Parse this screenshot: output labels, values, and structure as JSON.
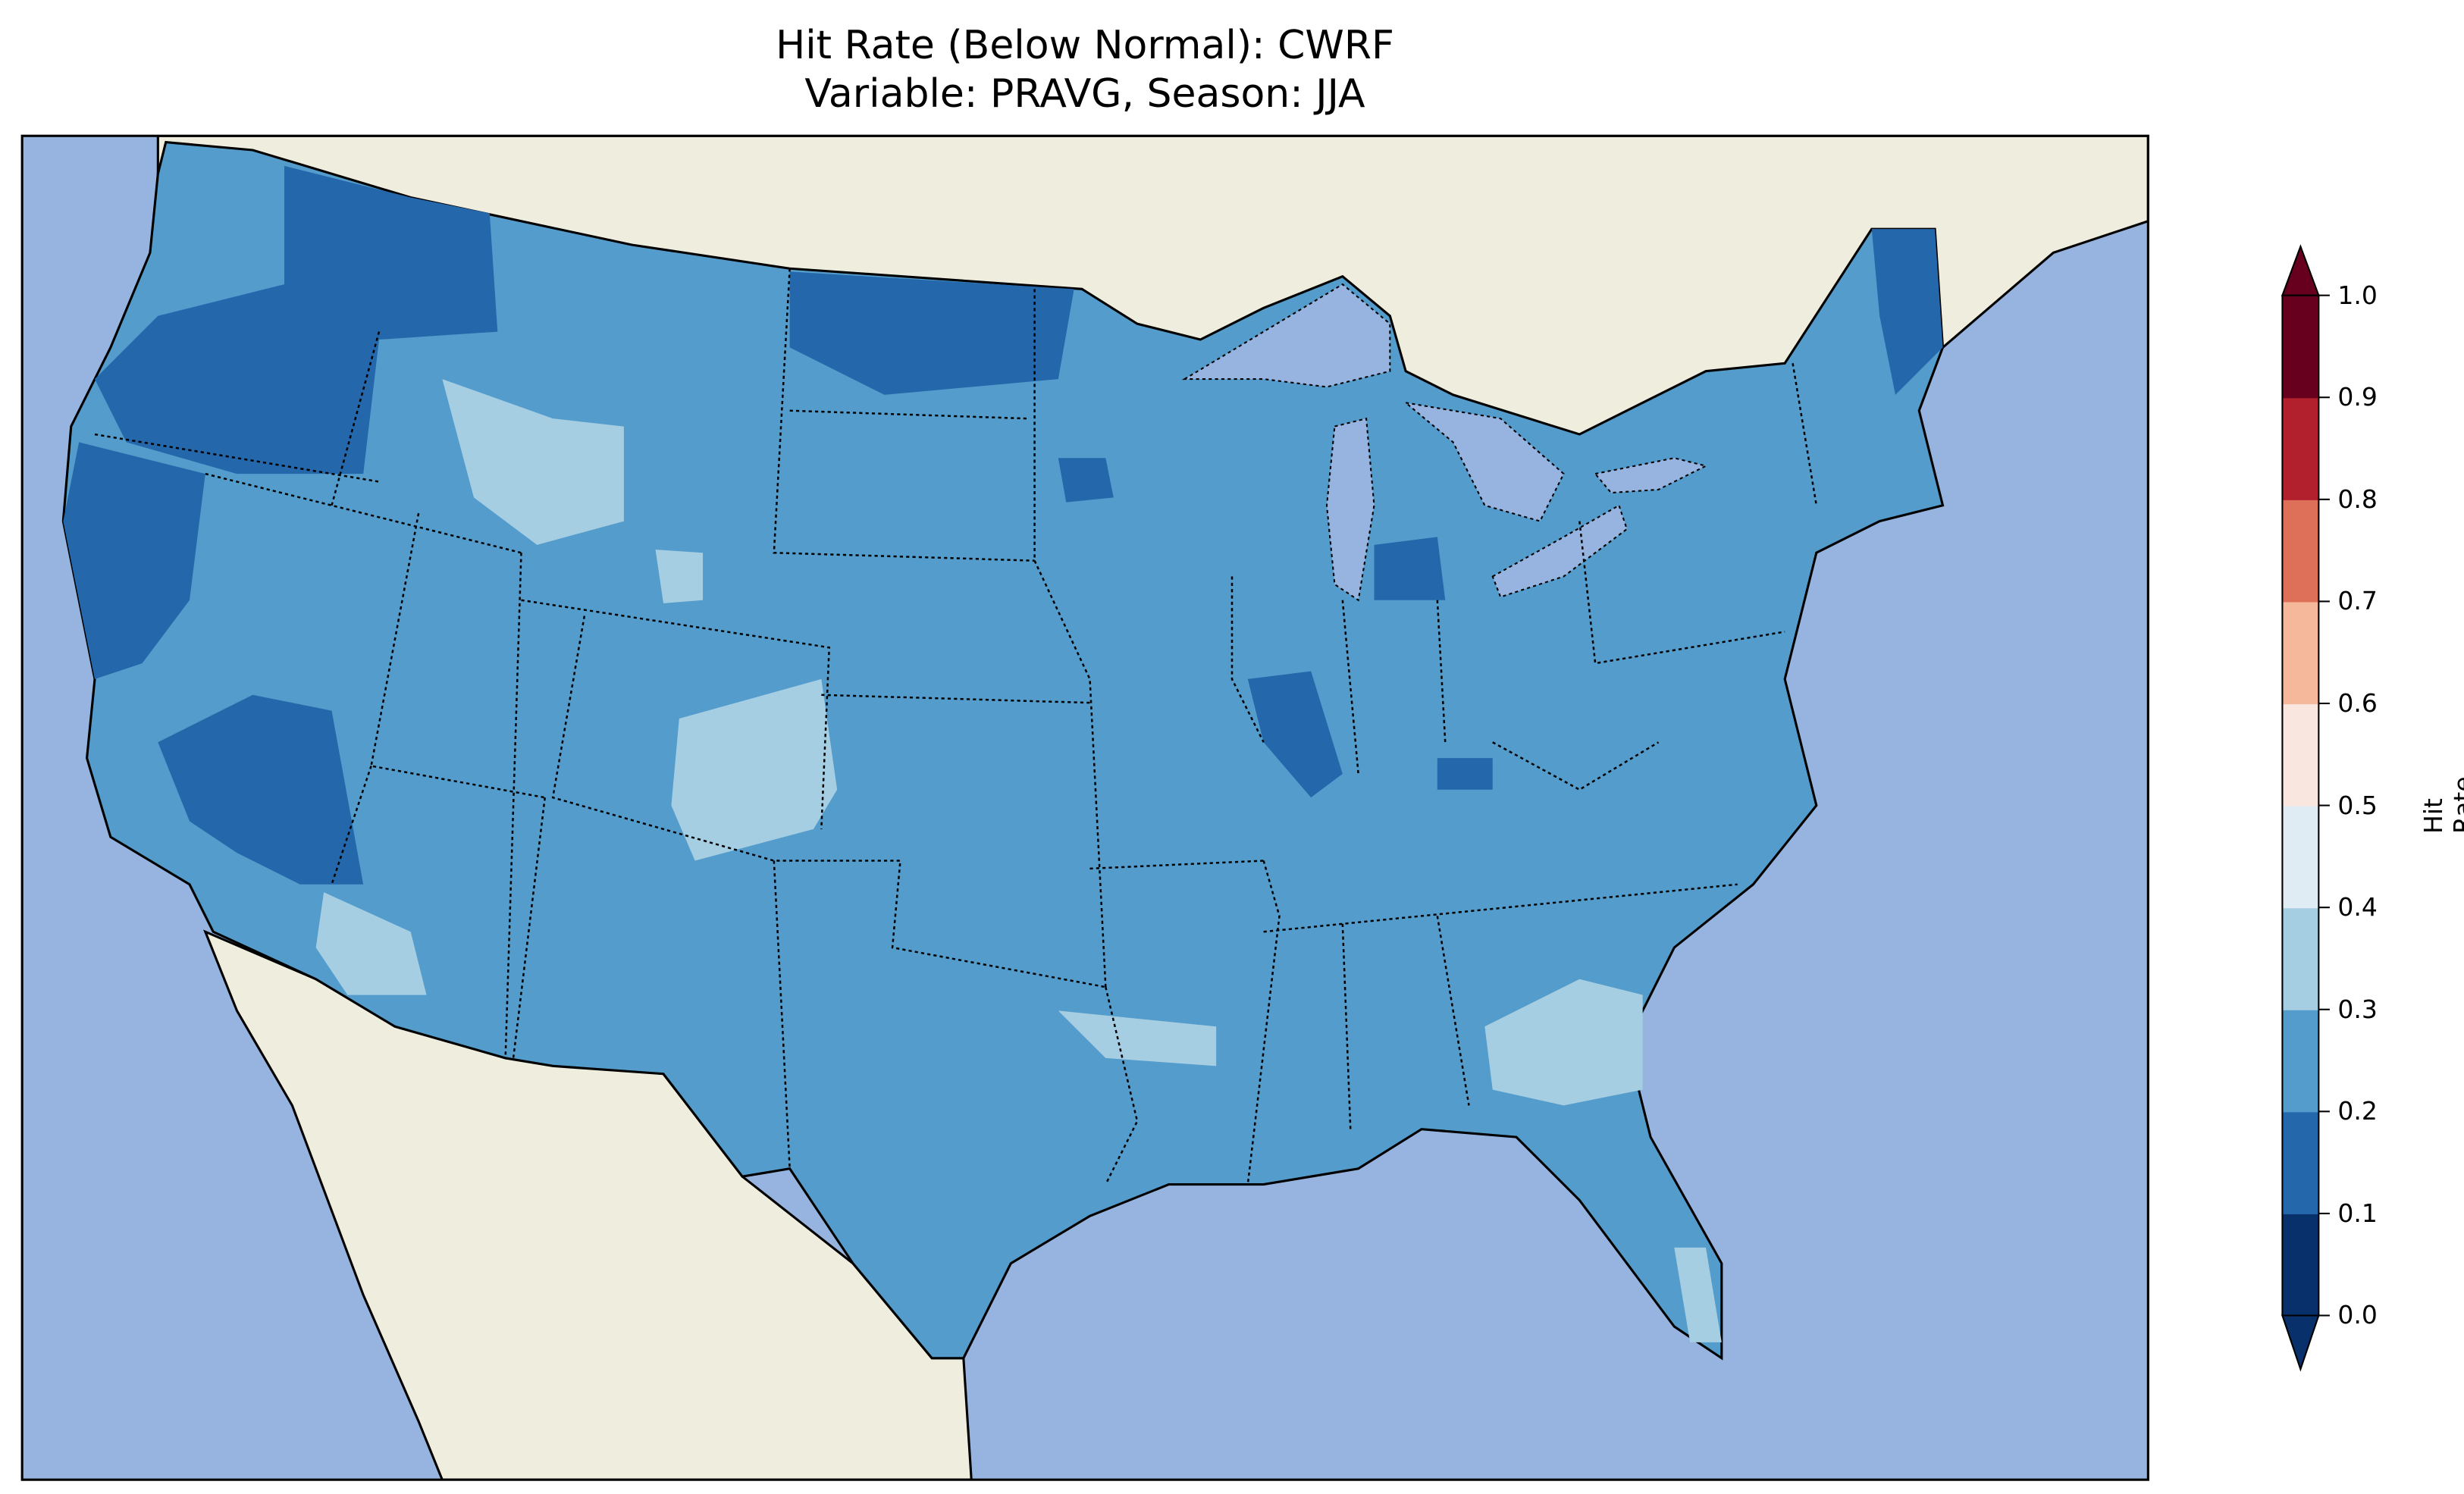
{
  "title": {
    "line1": "Hit Rate (Below Normal): CWRF",
    "line2": "Variable: PRAVG, Season: JJA"
  },
  "chart_data": {
    "type": "heatmap",
    "title": "Hit Rate (Below Normal): CWRF / Variable: PRAVG, Season: JJA",
    "region": "Contiguous United States",
    "colorbar": {
      "label": "Hit Rate",
      "ticks": [
        "0.0",
        "0.1",
        "0.2",
        "0.3",
        "0.4",
        "0.5",
        "0.6",
        "0.7",
        "0.8",
        "0.9",
        "1.0"
      ],
      "range": [
        0,
        1
      ],
      "extend": "both",
      "colors": [
        "#08306b",
        "#2467ab",
        "#539ccb",
        "#a6cee3",
        "#e0ecf3",
        "#f9e6de",
        "#f6b89a",
        "#de7059",
        "#b2202d",
        "#67001f"
      ]
    },
    "colors": {
      "ocean": "#97b4e0",
      "land": "#efeddd",
      "dominant": "#539ccb",
      "low": "#2467ab",
      "high": "#a6cee3"
    },
    "summary": {
      "dominant_range": [
        0.2,
        0.3
      ],
      "low_areas_range": [
        0.1,
        0.2
      ],
      "high_areas_range": [
        0.3,
        0.4
      ]
    }
  }
}
